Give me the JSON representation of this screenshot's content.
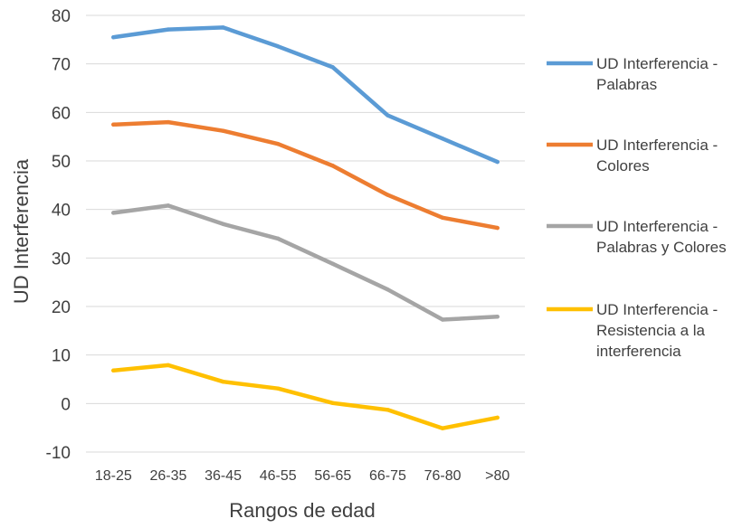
{
  "chart_data": {
    "type": "line",
    "xlabel": "Rangos de edad",
    "ylabel": "UD Interferencia",
    "ylim": [
      -10,
      80
    ],
    "yticks": [
      "80",
      "70",
      "60",
      "50",
      "40",
      "30",
      "20",
      "10",
      "0",
      "-10"
    ],
    "grid": true,
    "legend_position": "right",
    "categories": [
      "18-25",
      "26-35",
      "36-45",
      "46-55",
      "56-65",
      "66-75",
      "76-80",
      ">80"
    ],
    "series": [
      {
        "name": "UD Interferencia - Palabras",
        "legend_lines": [
          "UD Interferencia -",
          "Palabras"
        ],
        "color": "#5b9bd5",
        "values": [
          75.5,
          77.1,
          77.5,
          73.6,
          69.3,
          59.4,
          54.6,
          49.8
        ]
      },
      {
        "name": "UD Interferencia - Colores",
        "legend_lines": [
          "UD Interferencia -",
          "Colores"
        ],
        "color": "#ed7d31",
        "values": [
          57.5,
          58.0,
          56.2,
          53.5,
          49.0,
          43.0,
          38.3,
          36.2
        ]
      },
      {
        "name": "UD Interferencia - Palabras y Colores",
        "legend_lines": [
          "UD Interferencia -",
          "Palabras y Colores"
        ],
        "color": "#a5a5a5",
        "values": [
          39.3,
          40.8,
          37.0,
          34.0,
          28.8,
          23.5,
          17.3,
          17.9
        ]
      },
      {
        "name": "UD Interferencia - Resistencia a la interferencia",
        "legend_lines": [
          "UD Interferencia -",
          "Resistencia a la",
          "interferencia"
        ],
        "color": "#ffc000",
        "values": [
          6.8,
          7.9,
          4.5,
          3.1,
          0.1,
          -1.3,
          -5.1,
          -2.9
        ]
      }
    ]
  }
}
